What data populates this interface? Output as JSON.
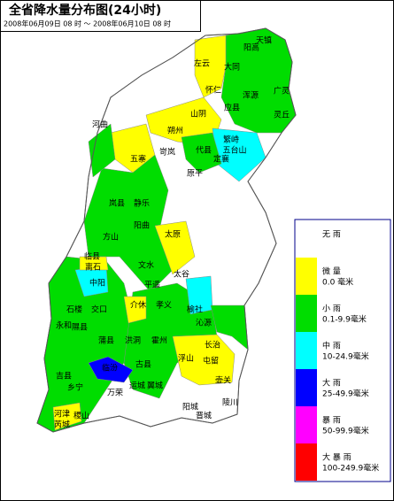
{
  "header": {
    "title": "全省降水量分布图(24小时)",
    "subtitle": "2008年06月09日 08 时 ～ 2008年06月10日 08 时"
  },
  "legend": [
    {
      "name": "无 雨",
      "color": "#ffffff"
    },
    {
      "name": "微 量",
      "range": "0.0 毫米",
      "color": "#ffff00"
    },
    {
      "name": "小 雨",
      "range": "0.1-9.9毫米",
      "color": "#00dd00"
    },
    {
      "name": "中 雨",
      "range": "10-24.9毫米",
      "color": "#00ffff"
    },
    {
      "name": "大 雨",
      "range": "25-49.9毫米",
      "color": "#0000ff"
    },
    {
      "name": "暴 雨",
      "range": "50-99.9毫米",
      "color": "#ff00ff"
    },
    {
      "name": "大 暴 雨",
      "range": "100-249.9毫米",
      "color": "#ff0000"
    }
  ],
  "map": {
    "labels": [
      "天镇",
      "阳高",
      "大同",
      "左云",
      "怀仁",
      "浑源",
      "广灵",
      "应县",
      "山阴",
      "灵丘",
      "河曲",
      "朔州",
      "繁峙",
      "五寨",
      "代县",
      "原平",
      "定襄",
      "五台山",
      "岢岚",
      "静乐",
      "岚县",
      "阳曲",
      "太原",
      "方山",
      "临县",
      "离石",
      "中阳",
      "文水",
      "平遥",
      "太谷",
      "榆社",
      "石楼",
      "交口",
      "介休",
      "孝义",
      "沁源",
      "隰县",
      "永和",
      "蒲县",
      "洪洞",
      "霍州",
      "长治",
      "屯留",
      "壶关",
      "吉县",
      "临汾",
      "古县",
      "浮山",
      "乡宁",
      "翼城",
      "河津",
      "稷山",
      "万荣",
      "运城",
      "芮城",
      "晋城",
      "陵川",
      "阳城"
    ]
  }
}
